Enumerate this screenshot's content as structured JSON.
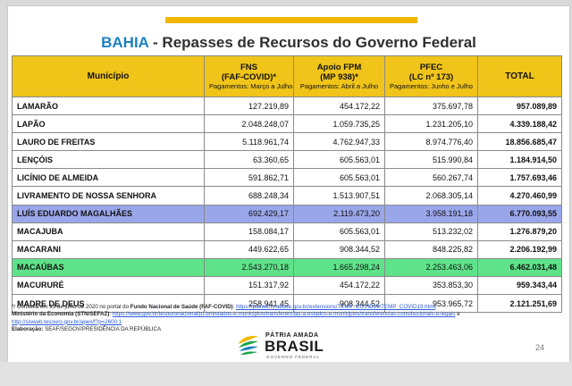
{
  "title": {
    "state": "BAHIA",
    "rest": " - Repasses de Recursos do Governo Federal"
  },
  "table": {
    "headers": {
      "municipio": "Município",
      "fns": {
        "l1": "FNS",
        "l2": "(FAF-COVID)*",
        "pay": "Pagamentos: Março a Julho"
      },
      "fpm": {
        "l1": "Apoio FPM",
        "l2": "(MP 938)*",
        "pay": "Pagamentos: Abril a Julho"
      },
      "pfec": {
        "l1": "PFEC",
        "l2": "(LC nº 173)",
        "pay": "Pagamentos: Junho e Julho"
      },
      "total": "TOTAL"
    },
    "rows": [
      {
        "name": "LAMARÃO",
        "fns": "127.219,89",
        "fpm": "454.172,22",
        "pfec": "375.697,78",
        "total": "957.089,89"
      },
      {
        "name": "LAPÃO",
        "fns": "2.048.248,07",
        "fpm": "1.059.735,25",
        "pfec": "1.231.205,10",
        "total": "4.339.188,42"
      },
      {
        "name": "LAURO DE FREITAS",
        "fns": "5.118.961,74",
        "fpm": "4.762.947,33",
        "pfec": "8.974.776,40",
        "total": "18.856.685,47"
      },
      {
        "name": "LENÇÓIS",
        "fns": "63.360,65",
        "fpm": "605.563,01",
        "pfec": "515.990,84",
        "total": "1.184.914,50"
      },
      {
        "name": "LICÍNIO DE ALMEIDA",
        "fns": "591.862,71",
        "fpm": "605.563,01",
        "pfec": "560.267,74",
        "total": "1.757.693,46"
      },
      {
        "name": "LIVRAMENTO DE NOSSA SENHORA",
        "fns": "688.248,34",
        "fpm": "1.513.907,51",
        "pfec": "2.068.305,14",
        "total": "4.270.460,99"
      },
      {
        "name": "LUÍS EDUARDO MAGALHÃES",
        "fns": "692.429,17",
        "fpm": "2.119.473,20",
        "pfec": "3.958.191,18",
        "total": "6.770.093,55"
      },
      {
        "name": "MACAJUBA",
        "fns": "158.084,17",
        "fpm": "605.563,01",
        "pfec": "513.232,02",
        "total": "1.276.879,20"
      },
      {
        "name": "MACARANI",
        "fns": "449.622,65",
        "fpm": "908.344,52",
        "pfec": "848.225,82",
        "total": "2.206.192,99"
      },
      {
        "name": "MACAÚBAS",
        "fns": "2.543.270,18",
        "fpm": "1.665.298,24",
        "pfec": "2.253.463,06",
        "total": "6.462.031,48"
      },
      {
        "name": "MACURURÉ",
        "fns": "151.317,92",
        "fpm": "454.172,22",
        "pfec": "353.853,30",
        "total": "959.343,44"
      },
      {
        "name": "MADRE DE DEUS",
        "fns": "258.941,45",
        "fpm": "908.344,52",
        "pfec": "953.965,72",
        "total": "2.121.251,69"
      }
    ]
  },
  "footer": {
    "line1_pre": "*/ Consulta em 13 de julho de 2020 no portal do ",
    "line1_bold": "Fundo Nacional de Saúde (FAF-COVID)",
    "line1_mid": ": ",
    "line1_link": "https://painelms.saude.gov.br/extensions/TEMP_COVID19/TEMP_COVID19.html",
    "line1_post": ",",
    "line2_bold": "Ministério da Economia (STN/SEFAZ)",
    "line2_mid": ": ",
    "line2_link": "https://www.gov.br/tesouronacional/pt-br/estados-e-municipios/transferencias-a-estados-e-municipios/transferencias-constitucionais-e-legais",
    "line2_post": " e",
    "line3_link": "http://sisweb.tesouro.gov.br/apex/f?p=2600:1",
    "line4_bold": "Elaboração:",
    "line4_rest": " SEAF/SEGOV/PRESIDÊNCIA DA REPÚBLICA"
  },
  "logo": {
    "line1": "PÁTRIA AMADA",
    "line2": "BRASIL",
    "line3": "GOVERNO FEDERAL"
  },
  "page_number": "24",
  "colors": {
    "header_yellow": "#f0c419",
    "highlight_blue": "#9aa6ea",
    "highlight_green": "#5fe38a",
    "title_blue": "#1c7fc1",
    "top_bar": "#f2b705"
  }
}
